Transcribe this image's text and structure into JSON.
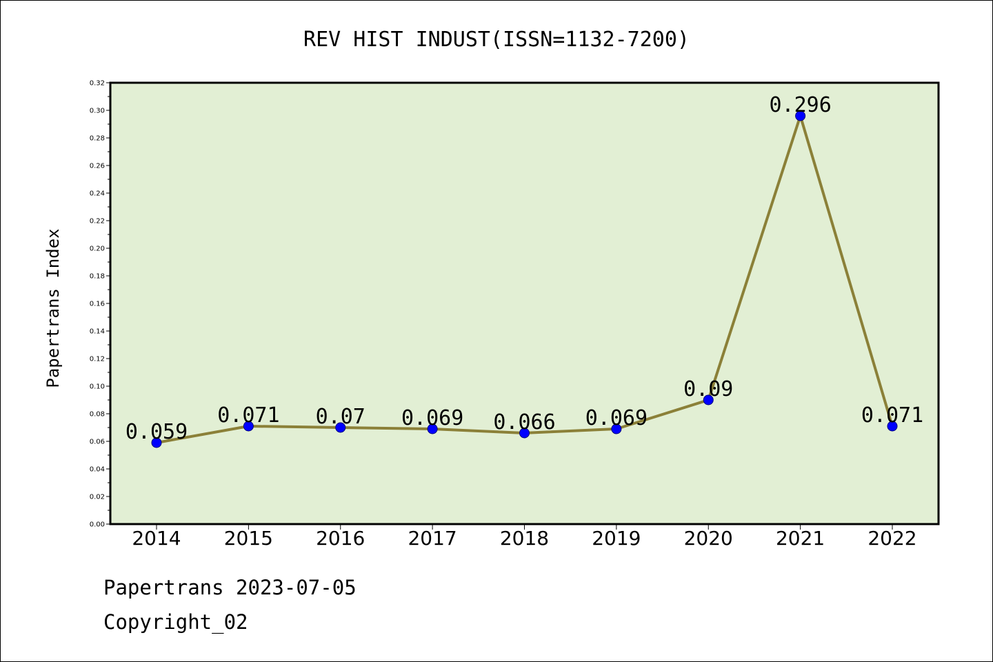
{
  "chart_data": {
    "type": "line",
    "title": "REV HIST INDUST(ISSN=1132-7200)",
    "xlabel": "",
    "ylabel": "Papertrans Index",
    "categories": [
      "2014",
      "2015",
      "2016",
      "2017",
      "2018",
      "2019",
      "2020",
      "2021",
      "2022"
    ],
    "series": [
      {
        "values": [
          0.059,
          0.071,
          0.07,
          0.069,
          0.066,
          0.069,
          0.09,
          0.296,
          0.071
        ]
      }
    ],
    "data_labels": [
      "0.059",
      "0.071",
      "0.07",
      "0.069",
      "0.066",
      "0.069",
      "0.09",
      "0.296",
      "0.071"
    ],
    "ylim": [
      0,
      0.32
    ],
    "yticks": [
      "0.00",
      "0.02",
      "0.04",
      "0.06",
      "0.08",
      "0.10",
      "0.12",
      "0.14",
      "0.16",
      "0.18",
      "0.20",
      "0.22",
      "0.24",
      "0.26",
      "0.28",
      "0.30",
      "0.32"
    ],
    "grid": false,
    "legend": "none",
    "colors": {
      "plot_background": "#e2efd4",
      "line": "#8b8038",
      "marker": "#0000ff"
    }
  },
  "footer": {
    "line1": "Papertrans 2023-07-05",
    "line2": "Copyright_02"
  }
}
